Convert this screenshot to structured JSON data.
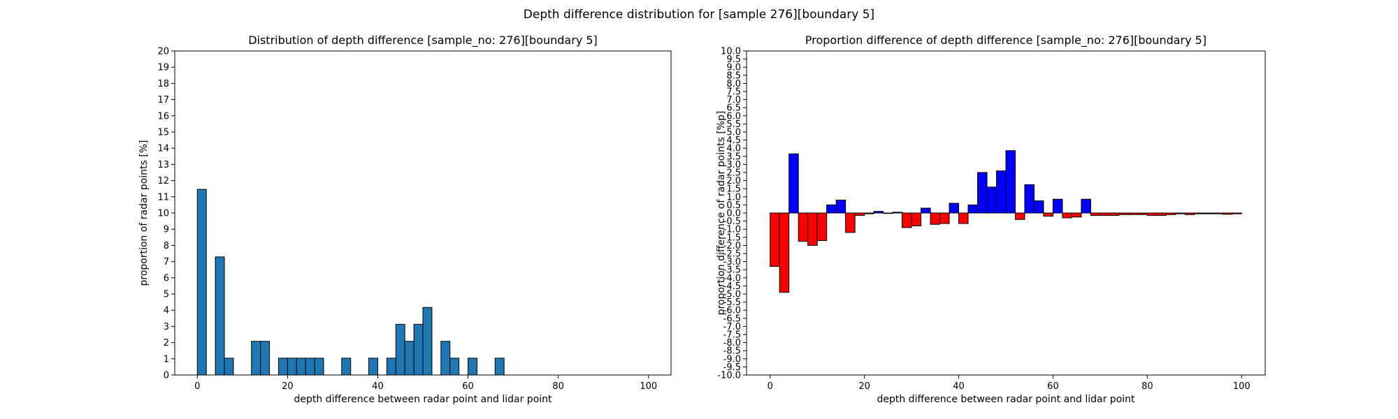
{
  "figure": {
    "suptitle": "Depth difference distribution for [sample 276][boundary 5]"
  },
  "chart_data": [
    {
      "type": "bar",
      "title": "Distribution of depth difference [sample_no: 276][boundary 5]",
      "xlabel": "depth difference between radar point and lidar point",
      "ylabel": "proportion of radar points [%]",
      "xlim": [
        -5,
        105
      ],
      "ylim": [
        0,
        20
      ],
      "xticks": [
        0,
        20,
        40,
        60,
        80,
        100
      ],
      "yticks": [
        0,
        1,
        2,
        3,
        4,
        5,
        6,
        7,
        8,
        9,
        10,
        11,
        12,
        13,
        14,
        15,
        16,
        17,
        18,
        19,
        20
      ],
      "bin_width": 2,
      "bar_color": "#1f77b4",
      "edge_color": "#000000",
      "bins": [
        {
          "x": 0,
          "value": 11.46
        },
        {
          "x": 4,
          "value": 7.29
        },
        {
          "x": 6,
          "value": 1.04
        },
        {
          "x": 12,
          "value": 2.08
        },
        {
          "x": 14,
          "value": 2.08
        },
        {
          "x": 18,
          "value": 1.04
        },
        {
          "x": 20,
          "value": 1.04
        },
        {
          "x": 22,
          "value": 1.04
        },
        {
          "x": 24,
          "value": 1.04
        },
        {
          "x": 26,
          "value": 1.04
        },
        {
          "x": 32,
          "value": 1.04
        },
        {
          "x": 38,
          "value": 1.04
        },
        {
          "x": 42,
          "value": 1.04
        },
        {
          "x": 44,
          "value": 3.13
        },
        {
          "x": 46,
          "value": 2.08
        },
        {
          "x": 48,
          "value": 3.13
        },
        {
          "x": 50,
          "value": 4.17
        },
        {
          "x": 54,
          "value": 2.08
        },
        {
          "x": 56,
          "value": 1.04
        },
        {
          "x": 60,
          "value": 1.04
        },
        {
          "x": 66,
          "value": 1.04
        }
      ]
    },
    {
      "type": "bar",
      "title": "Proportion difference of depth difference [sample_no: 276][boundary 5]",
      "xlabel": "depth difference between radar point and lidar point",
      "ylabel": "proportion difference of radar points [%p]",
      "xlim": [
        -5,
        105
      ],
      "ylim": [
        -10,
        10
      ],
      "xticks": [
        0,
        20,
        40,
        60,
        80,
        100
      ],
      "yticks": [
        "-10.0",
        "-9.5",
        "-9.0",
        "-8.5",
        "-8.0",
        "-7.5",
        "-7.0",
        "-6.5",
        "-6.0",
        "-5.5",
        "-5.0",
        "-4.5",
        "-4.0",
        "-3.5",
        "-3.0",
        "-2.5",
        "-2.0",
        "-1.5",
        "-1.0",
        "-0.5",
        "0.0",
        "0.5",
        "1.0",
        "1.5",
        "2.0",
        "2.5",
        "3.0",
        "3.5",
        "4.0",
        "4.5",
        "5.0",
        "5.5",
        "6.0",
        "6.5",
        "7.0",
        "7.5",
        "8.0",
        "8.5",
        "9.0",
        "9.5",
        "10.0"
      ],
      "bin_width": 2,
      "positive_color": "#0000ff",
      "negative_color": "#ff0000",
      "edge_color": "#000000",
      "bins": [
        {
          "x": 0,
          "value": -3.3
        },
        {
          "x": 2,
          "value": -4.9
        },
        {
          "x": 4,
          "value": 3.65
        },
        {
          "x": 6,
          "value": -1.75
        },
        {
          "x": 8,
          "value": -2.0
        },
        {
          "x": 10,
          "value": -1.7
        },
        {
          "x": 12,
          "value": 0.5
        },
        {
          "x": 14,
          "value": 0.8
        },
        {
          "x": 16,
          "value": -1.2
        },
        {
          "x": 18,
          "value": -0.15
        },
        {
          "x": 20,
          "value": -0.05
        },
        {
          "x": 22,
          "value": 0.1
        },
        {
          "x": 24,
          "value": -0.03
        },
        {
          "x": 26,
          "value": 0.05
        },
        {
          "x": 28,
          "value": -0.9
        },
        {
          "x": 30,
          "value": -0.8
        },
        {
          "x": 32,
          "value": 0.3
        },
        {
          "x": 34,
          "value": -0.7
        },
        {
          "x": 36,
          "value": -0.65
        },
        {
          "x": 38,
          "value": 0.6
        },
        {
          "x": 40,
          "value": -0.65
        },
        {
          "x": 42,
          "value": 0.5
        },
        {
          "x": 44,
          "value": 2.5
        },
        {
          "x": 46,
          "value": 1.6
        },
        {
          "x": 48,
          "value": 2.6
        },
        {
          "x": 50,
          "value": 3.85
        },
        {
          "x": 52,
          "value": -0.4
        },
        {
          "x": 54,
          "value": 1.75
        },
        {
          "x": 56,
          "value": 0.75
        },
        {
          "x": 58,
          "value": -0.2
        },
        {
          "x": 60,
          "value": 0.85
        },
        {
          "x": 62,
          "value": -0.3
        },
        {
          "x": 64,
          "value": -0.25
        },
        {
          "x": 66,
          "value": 0.85
        },
        {
          "x": 68,
          "value": -0.15
        },
        {
          "x": 70,
          "value": -0.15
        },
        {
          "x": 72,
          "value": -0.15
        },
        {
          "x": 74,
          "value": -0.1
        },
        {
          "x": 76,
          "value": -0.1
        },
        {
          "x": 78,
          "value": -0.1
        },
        {
          "x": 80,
          "value": -0.15
        },
        {
          "x": 82,
          "value": -0.15
        },
        {
          "x": 84,
          "value": -0.1
        },
        {
          "x": 86,
          "value": -0.05
        },
        {
          "x": 88,
          "value": -0.1
        },
        {
          "x": 90,
          "value": -0.05
        },
        {
          "x": 92,
          "value": -0.05
        },
        {
          "x": 94,
          "value": -0.05
        },
        {
          "x": 96,
          "value": -0.08
        },
        {
          "x": 98,
          "value": -0.05
        }
      ]
    }
  ]
}
